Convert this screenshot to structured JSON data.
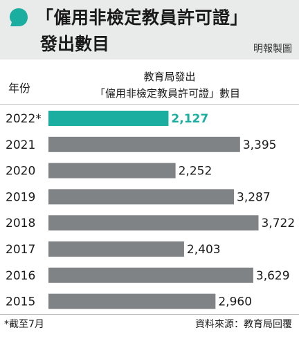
{
  "header": {
    "title_line1": "「僱用非檢定教員許可證」",
    "title_line2": "發出數目",
    "credit": "明報製圖",
    "bubble_color": "#1aaea0"
  },
  "table_header": {
    "year_label": "年份",
    "value_label_line1": "教育局發出",
    "value_label_line2": "「僱用非檢定教員許可證」數目"
  },
  "footer": {
    "note": "*截至7月",
    "source": "資料來源：教育局回覆"
  },
  "chart_data": {
    "type": "bar",
    "orientation": "horizontal",
    "categories": [
      "2022*",
      "2021",
      "2020",
      "2019",
      "2018",
      "2017",
      "2016",
      "2015"
    ],
    "values": [
      2127,
      3395,
      2252,
      3287,
      3722,
      2403,
      3629,
      2960
    ],
    "value_labels": [
      "2,127",
      "3,395",
      "2,252",
      "3,287",
      "3,722",
      "2,403",
      "3,629",
      "2,960"
    ],
    "highlight_color": "#1aaea0",
    "bar_color": "#7f8386",
    "xlim": [
      0,
      3900
    ]
  }
}
